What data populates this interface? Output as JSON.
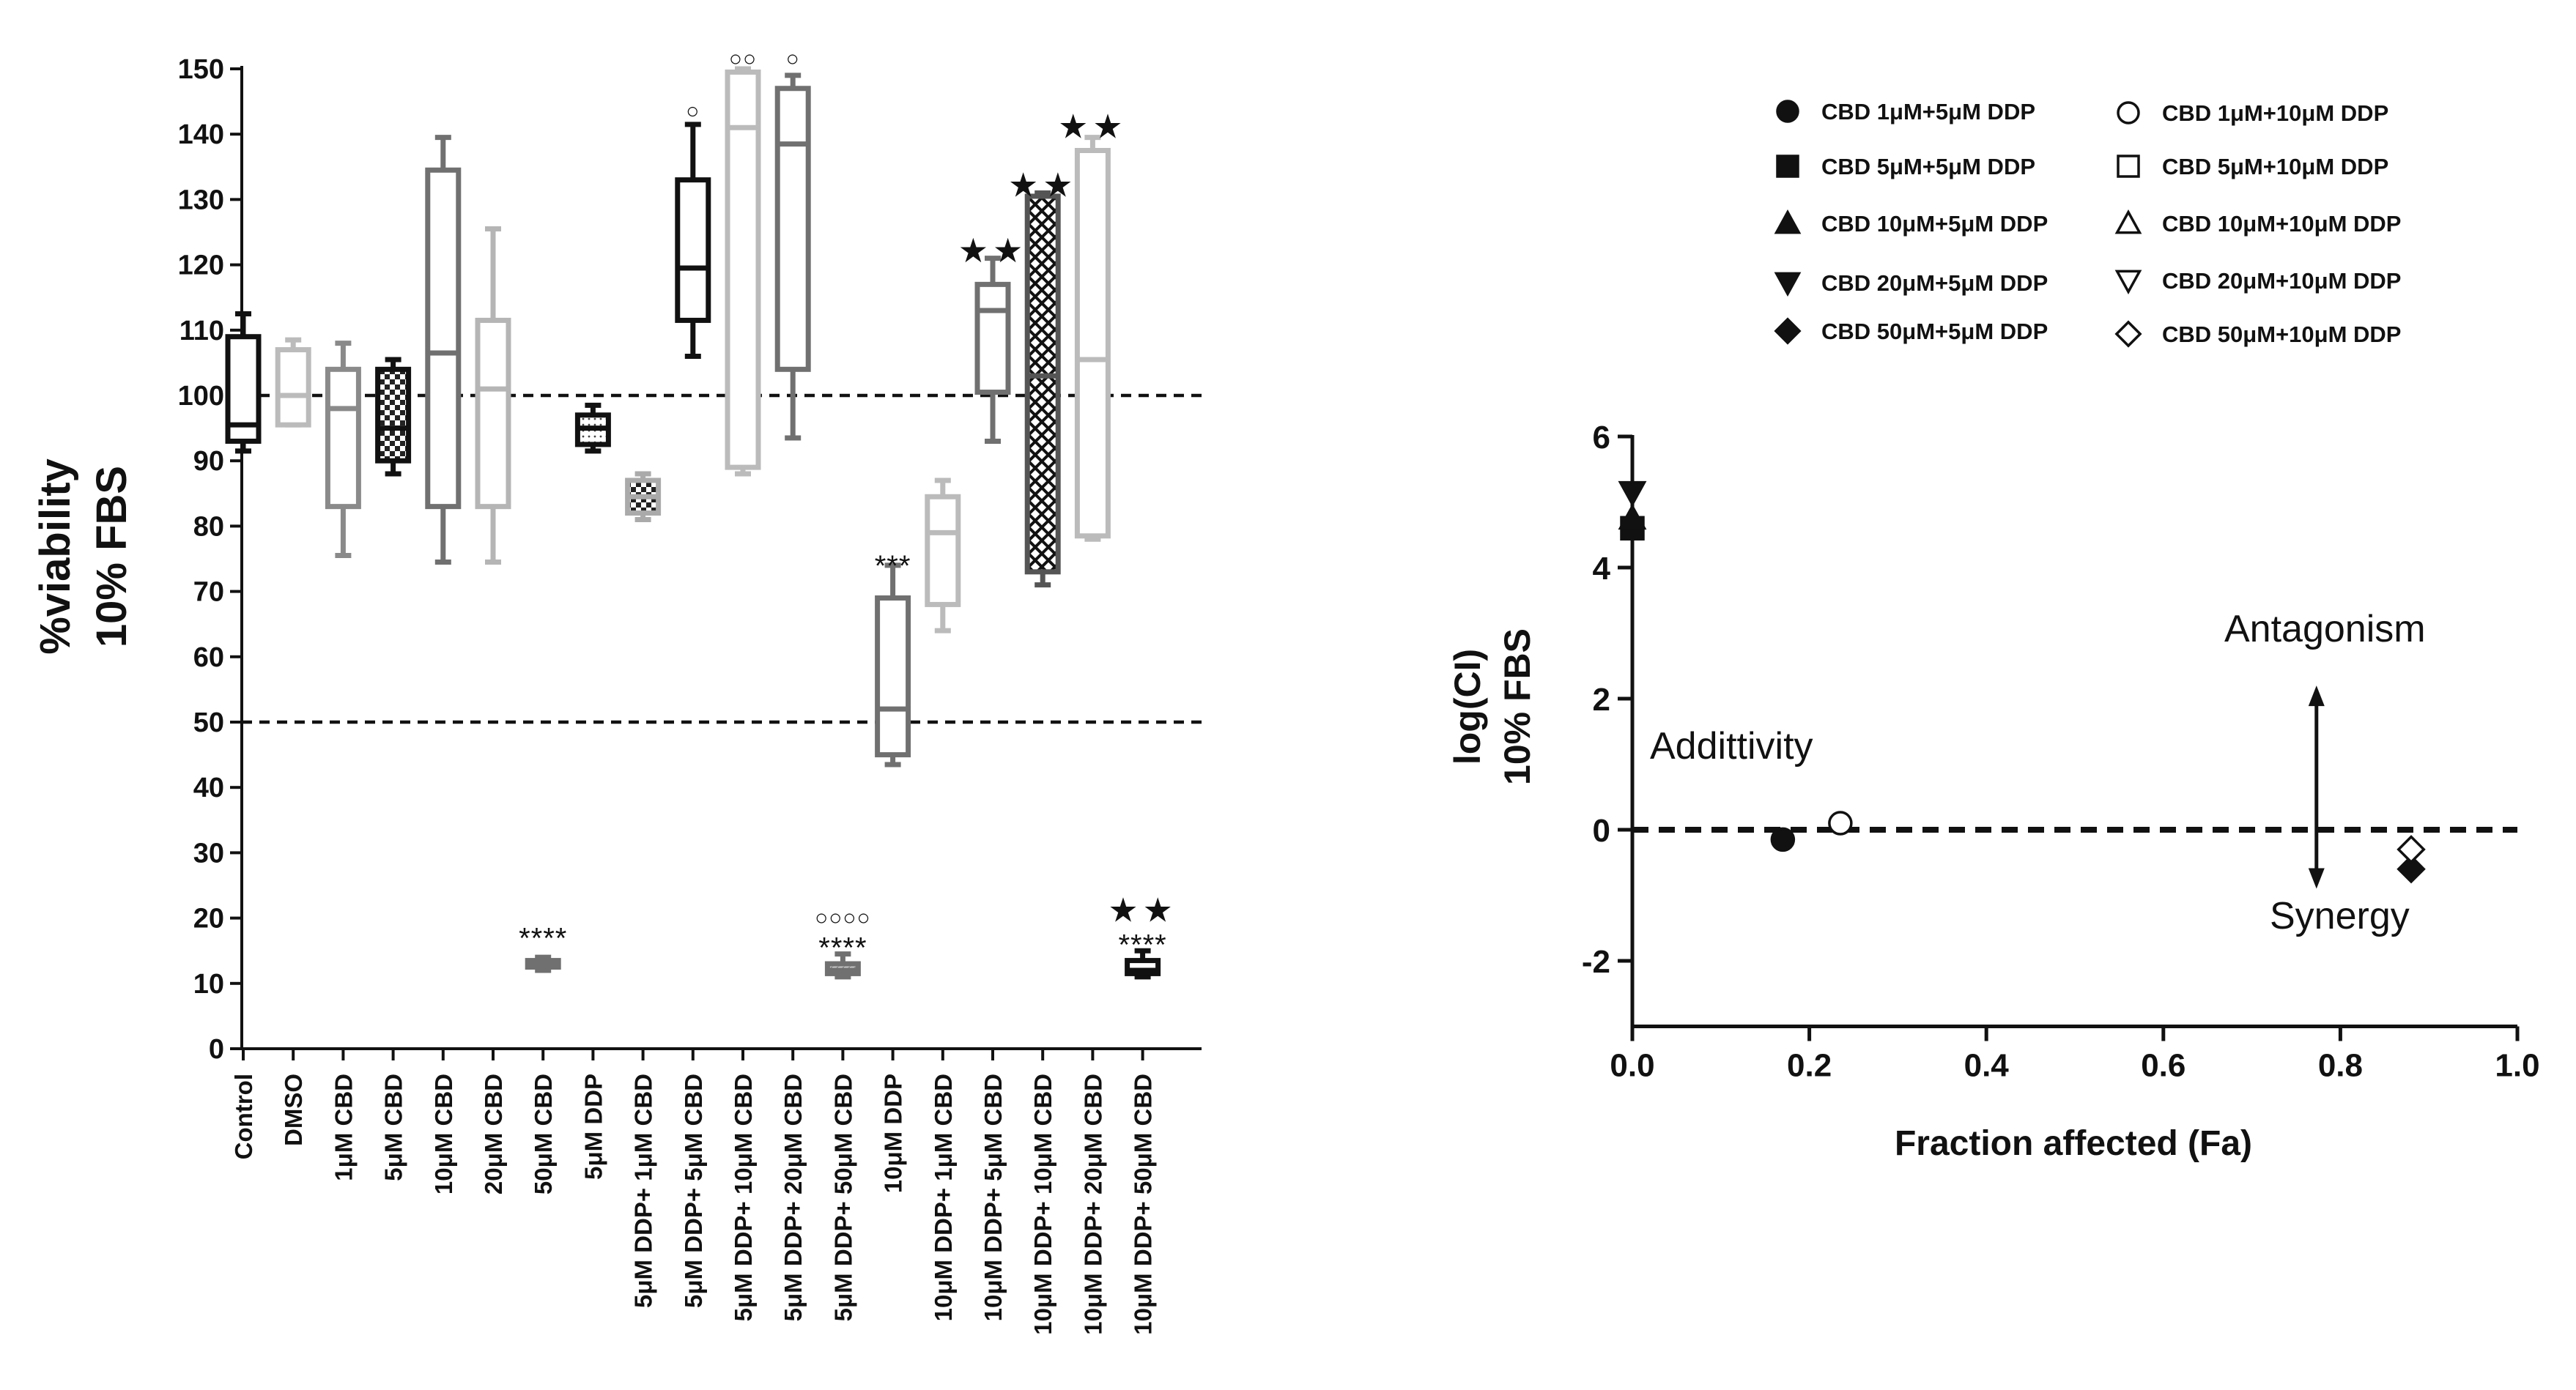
{
  "chart_data": [
    {
      "type": "box",
      "ylabel_line1": "%viability",
      "ylabel_line2": "10% FBS",
      "ylim": [
        0,
        150
      ],
      "yticks": [
        0,
        10,
        20,
        30,
        40,
        50,
        60,
        70,
        80,
        90,
        100,
        110,
        120,
        130,
        140,
        150
      ],
      "reference_lines": [
        100,
        50
      ],
      "categories": [
        "Control",
        "DMSO",
        "1μM CBD",
        "5μM CBD",
        "10μM CBD",
        "20μM CBD",
        "50μM CBD",
        "5μM DDP",
        "5μM DDP+ 1μM CBD",
        "5μM DDP+ 5μM CBD",
        "5μM DDP+ 10μM CBD",
        "5μM DDP+ 20μM CBD",
        "5μM DDP+ 50μM CBD",
        "10μM DDP",
        "10μM DDP+ 1μM CBD",
        "10μM DDP+ 5μM CBD",
        "10μM DDP+ 10μM CBD",
        "10μM DDP+ 20μM CBD",
        "10μM DDP+ 50μM CBD"
      ],
      "boxes": [
        {
          "min": 91.5,
          "q1": 93,
          "median": 95.5,
          "q3": 109,
          "max": 112.5,
          "color": "#111111",
          "fill": "none"
        },
        {
          "min": 95.5,
          "q1": 95.5,
          "median": 100,
          "q3": 107,
          "max": 108.5,
          "color": "#bbbbbb",
          "fill": "none"
        },
        {
          "min": 75.5,
          "q1": 83,
          "median": 98,
          "q3": 104,
          "max": 108,
          "color": "#8a8a8a",
          "fill": "none"
        },
        {
          "min": 88,
          "q1": 90,
          "median": 95,
          "q3": 104,
          "max": 105.5,
          "color": "#111111",
          "fill": "check"
        },
        {
          "min": 74.5,
          "q1": 83,
          "median": 106.5,
          "q3": 134.5,
          "max": 139.5,
          "color": "#707070",
          "fill": "none"
        },
        {
          "min": 74.5,
          "q1": 83,
          "median": 101,
          "q3": 111.5,
          "max": 125.5,
          "color": "#b5b5b5",
          "fill": "none"
        },
        {
          "min": 12,
          "q1": 12.5,
          "median": 13,
          "q3": 13.5,
          "max": 14,
          "color": "#707070",
          "fill": "gray"
        },
        {
          "min": 91.5,
          "q1": 92.5,
          "median": 95,
          "q3": 97,
          "max": 98.5,
          "color": "#111111",
          "fill": "dots"
        },
        {
          "min": 81,
          "q1": 82,
          "median": 84.5,
          "q3": 87,
          "max": 88,
          "color": "#aaaaaa",
          "fill": "check"
        },
        {
          "min": 106,
          "q1": 111.5,
          "median": 119.5,
          "q3": 133,
          "max": 141.5,
          "color": "#111111",
          "fill": "none"
        },
        {
          "min": 88,
          "q1": 89,
          "median": 141,
          "q3": 149.5,
          "max": 150,
          "color": "#bbbbbb",
          "fill": "none"
        },
        {
          "min": 93.5,
          "q1": 104,
          "median": 138.5,
          "q3": 147,
          "max": 149,
          "color": "#707070",
          "fill": "none"
        },
        {
          "min": 11,
          "q1": 11.5,
          "median": 12,
          "q3": 13,
          "max": 14.5,
          "color": "#707070",
          "fill": "gray"
        },
        {
          "min": 43.5,
          "q1": 45,
          "median": 52,
          "q3": 69,
          "max": 74,
          "color": "#707070",
          "fill": "none"
        },
        {
          "min": 64,
          "q1": 68,
          "median": 79,
          "q3": 84.5,
          "max": 87,
          "color": "#bbbbbb",
          "fill": "none"
        },
        {
          "min": 93,
          "q1": 100.5,
          "median": 113,
          "q3": 117,
          "max": 121,
          "color": "#707070",
          "fill": "none"
        },
        {
          "min": 71,
          "q1": 73,
          "median": 103,
          "q3": 130.5,
          "max": 131,
          "color": "#555555",
          "fill": "cross"
        },
        {
          "min": 78,
          "q1": 78.5,
          "median": 105.5,
          "q3": 137.5,
          "max": 139.5,
          "color": "#bbbbbb",
          "fill": "none"
        },
        {
          "min": 11,
          "q1": 11.5,
          "median": 12,
          "q3": 13.5,
          "max": 15,
          "color": "#111111",
          "fill": "none"
        }
      ],
      "annotations": [
        {
          "index": 6,
          "text": "****",
          "y": 17
        },
        {
          "index": 9,
          "text": "○",
          "y": 144
        },
        {
          "index": 10,
          "text": "○○",
          "y": 152
        },
        {
          "index": 11,
          "text": "○",
          "y": 152
        },
        {
          "index": 12,
          "text": "○○○○",
          "y": 20.5
        },
        {
          "index": 12,
          "text": "****",
          "y": 15.5
        },
        {
          "index": 13,
          "text": "***",
          "y": 74
        },
        {
          "index": 15,
          "text": "★★",
          "y": 122
        },
        {
          "index": 16,
          "text": "★★",
          "y": 132
        },
        {
          "index": 17,
          "text": "★★",
          "y": 141
        },
        {
          "index": 18,
          "text": "★★",
          "y": 21
        },
        {
          "index": 18,
          "text": "****",
          "y": 16
        }
      ]
    },
    {
      "type": "scatter",
      "xlabel": "Fraction affected (Fa)",
      "ylabel_line1": "log(CI)",
      "ylabel_line2": "10% FBS",
      "xlim": [
        0,
        1
      ],
      "ylim": [
        -3,
        6
      ],
      "xticks": [
        "0.0",
        "0.2",
        "0.4",
        "0.6",
        "0.8",
        "1.0"
      ],
      "yticks": [
        "6",
        "4",
        "2",
        "0",
        "-2"
      ],
      "ytick_values": [
        6,
        4,
        2,
        0,
        -2
      ],
      "reference_line_y": 0,
      "series": [
        {
          "name": "CBD 1μM+5μM DDP",
          "marker": "circle",
          "filled": true,
          "x": 0.17,
          "y": -0.15
        },
        {
          "name": "CBD 5μM+5μM DDP",
          "marker": "square",
          "filled": true,
          "x": 0.0,
          "y": 4.6
        },
        {
          "name": "CBD 10μM+5μM DDP",
          "marker": "triangle-up",
          "filled": true,
          "x": 0.0,
          "y": 4.75
        },
        {
          "name": "CBD 20μM+5μM DDP",
          "marker": "triangle-down",
          "filled": true,
          "x": 0.0,
          "y": 5.15
        },
        {
          "name": "CBD 50μM+5μM DDP",
          "marker": "diamond",
          "filled": true,
          "x": 0.88,
          "y": -0.6
        },
        {
          "name": "CBD 1μM+10μM DDP",
          "marker": "circle",
          "filled": false,
          "x": 0.235,
          "y": 0.1
        },
        {
          "name": "CBD 5μM+10μM DDP",
          "marker": "square",
          "filled": false,
          "x": null,
          "y": null
        },
        {
          "name": "CBD 10μM+10μM DDP",
          "marker": "triangle-up",
          "filled": false,
          "x": null,
          "y": null
        },
        {
          "name": "CBD 20μM+10μM DDP",
          "marker": "triangle-down",
          "filled": false,
          "x": null,
          "y": null
        },
        {
          "name": "CBD 50μM+10μM DDP",
          "marker": "diamond",
          "filled": false,
          "x": 0.88,
          "y": -0.3
        }
      ],
      "text_annotations": {
        "additivity": "Addittivity",
        "antagonism": "Antagonism",
        "synergy": "Synergy"
      },
      "arrow": {
        "x": 0.773,
        "y_from": 2.2,
        "y_to": -0.9
      }
    }
  ]
}
